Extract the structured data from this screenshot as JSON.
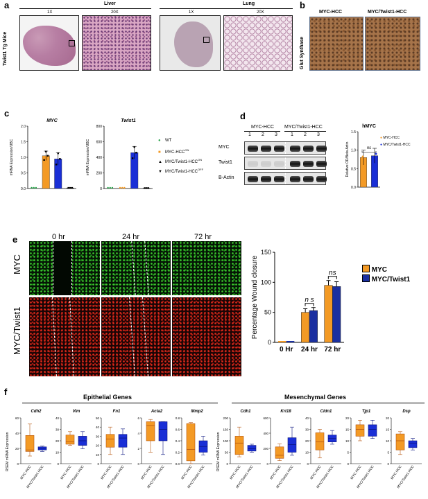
{
  "panel_a": {
    "label": "a",
    "liver_title": "Liver",
    "lung_title": "Lung",
    "mag_1x": "1X",
    "mag_20x": "20X",
    "side_label": "Twist1 Tg Mice"
  },
  "panel_b": {
    "label": "b",
    "col1": "MYC-HCC",
    "col2": "MYC/Twist1-HCC",
    "side_label": "Glut Synthase"
  },
  "panel_c": {
    "label": "c",
    "ylabel": "mRNA Expression/UBC",
    "legend": [
      {
        "name": "WT",
        "color": "#2aa44b",
        "marker": "●"
      },
      {
        "name": "MYC-HCC",
        "sup": "ON",
        "color": "#f39a25",
        "marker": "■"
      },
      {
        "name": "MYC/Twist1-HCC",
        "sup": "ON",
        "color": "#000000",
        "marker": "▲"
      },
      {
        "name": "MYC/Twist1-HCC",
        "sup": "OFF",
        "color": "#000000",
        "marker": "▼"
      }
    ]
  },
  "panel_d": {
    "label": "d",
    "group1": "MYC-HCC",
    "group2": "MYC/Twist1-HCC",
    "lanes": [
      "1",
      "2",
      "3",
      "1",
      "2",
      "3"
    ],
    "rows": [
      "MYC",
      "Twist1",
      "B-Actin"
    ],
    "legend": [
      {
        "name": "MYC-HCC",
        "color": "#f39a25"
      },
      {
        "name": "MYC/Twist1-HCC",
        "color": "#1a2fd6"
      }
    ]
  },
  "panel_e": {
    "label": "e",
    "times": [
      "0 hr",
      "24 hr",
      "72 hr"
    ],
    "row_labels": [
      "MYC",
      "MYC/Twist1"
    ],
    "legend": [
      {
        "name": "MYC",
        "color": "#f39a25"
      },
      {
        "name": "MYC/Twist1",
        "color": "#1a2fa0"
      }
    ]
  },
  "panel_f": {
    "label": "f",
    "epithelial_title": "Epithelial Genes",
    "mesenchymal_title": "Mesenchymal Genes",
    "ylabel": "RSEM mRNA Expression",
    "xcat": [
      "MYC HCC",
      "MYC/Twist1 HCC"
    ],
    "genes": [
      "Cdh2",
      "Vim",
      "Fn1",
      "Acta2",
      "Mmp2",
      "Cdh1",
      "Krt18",
      "Cldn1",
      "Tjp1",
      "Dsp"
    ]
  },
  "chart_data": [
    {
      "id": "c_myc",
      "type": "bar",
      "title": "MYC",
      "ylabel": "mRNA Expression/UBC",
      "categories": [
        "WT",
        "MYC-HCCON",
        "MYC/Twist1-HCCON",
        "MYC/Twist1-HCCOFF"
      ],
      "values": [
        0,
        1.05,
        0.95,
        0.02
      ],
      "errors": [
        0,
        0.15,
        0.2,
        0
      ],
      "colors": [
        "#2aa44b",
        "#f39a25",
        "#1a2fd6",
        "#000000"
      ],
      "ylim": [
        0,
        2
      ],
      "yticks": [
        "0.0",
        "0.5",
        "1.0",
        "1.5",
        "2.0"
      ]
    },
    {
      "id": "c_twist",
      "type": "bar",
      "title": "Twist1",
      "ylabel": "mRNA Expression/UBC",
      "categories": [
        "WT",
        "MYC-HCCON",
        "MYC/Twist1-HCCON",
        "MYC/Twist1-HCCOFF"
      ],
      "values": [
        0,
        0,
        460,
        5
      ],
      "errors": [
        0,
        0,
        80,
        0
      ],
      "colors": [
        "#2aa44b",
        "#f39a25",
        "#1a2fd6",
        "#000000"
      ],
      "ylim": [
        0,
        800
      ],
      "yticks": [
        "0",
        "200",
        "400",
        "600",
        "800"
      ]
    },
    {
      "id": "d_quant",
      "type": "bar",
      "title": "hMYC",
      "ylabel": "Relative OD/Beta Actin",
      "categories": [
        "MYC-HCC",
        "MYC/Twist1-HCC"
      ],
      "values": [
        0.8,
        0.85
      ],
      "errors": [
        0.2,
        0.2
      ],
      "colors": [
        "#f39a25",
        "#1a2fd6"
      ],
      "ylim": [
        0,
        1.5
      ],
      "yticks": [
        "0.0",
        "0.5",
        "1.0",
        "1.5"
      ],
      "annotation": "ns"
    },
    {
      "id": "e_wound",
      "type": "bar",
      "ylabel": "Percentage Wound closure",
      "categories": [
        "0 Hr",
        "24 hr",
        "72 hr"
      ],
      "series": [
        {
          "name": "MYC",
          "values": [
            0,
            50,
            95
          ],
          "errors": [
            0,
            6,
            8
          ],
          "color": "#f39a25"
        },
        {
          "name": "MYC/Twist1",
          "values": [
            0,
            53,
            93
          ],
          "errors": [
            0,
            5,
            8
          ],
          "color": "#1a2fa0"
        }
      ],
      "ylim": [
        0,
        150
      ],
      "yticks": [
        "0",
        "50",
        "100",
        "150"
      ],
      "annotations": [
        "n s",
        "ns"
      ]
    },
    {
      "id": "f_box",
      "type": "box",
      "ylabel": "RSEM mRNA Expression",
      "genes": [
        {
          "name": "Cdh2",
          "ticks": [
            "0",
            "20",
            "40",
            "60"
          ],
          "ymax": 60,
          "myc": [
            10,
            16,
            18,
            37,
            52
          ],
          "twist": [
            16,
            18,
            20,
            22,
            23
          ]
        },
        {
          "name": "Vim",
          "ticks": [
            "0",
            "10",
            "20",
            "30",
            "40"
          ],
          "ymax": 40,
          "myc": [
            16,
            17,
            19,
            25,
            28
          ],
          "twist": [
            13,
            16,
            20,
            24,
            28
          ]
        },
        {
          "name": "Fn1",
          "ticks": [
            "0",
            "10",
            "20",
            "30",
            "40",
            "50"
          ],
          "ymax": 50,
          "myc": [
            10,
            18,
            27,
            32,
            40
          ],
          "twist": [
            10,
            18,
            28,
            32,
            38
          ]
        },
        {
          "name": "Acta2",
          "ticks": [
            "0",
            "2",
            "4",
            "6"
          ],
          "ymax": 6,
          "myc": [
            1.5,
            3,
            5,
            5.5,
            5.8
          ],
          "twist": [
            1.2,
            3,
            4.5,
            5.5,
            5.5
          ]
        },
        {
          "name": "Mmp2",
          "ticks": [
            "0.0",
            "0.2",
            "0.4",
            "0.6",
            "0.8"
          ],
          "ymax": 0.8,
          "myc": [
            0,
            0.05,
            0.25,
            0.7,
            0.72
          ],
          "twist": [
            0.15,
            0.2,
            0.3,
            0.4,
            0.48
          ]
        },
        {
          "name": "Cdh1",
          "ticks": [
            "0",
            "50",
            "100",
            "150",
            "200"
          ],
          "ymax": 200,
          "myc": [
            30,
            40,
            90,
            120,
            160
          ],
          "twist": [
            50,
            55,
            65,
            80,
            85
          ]
        },
        {
          "name": "Krt18",
          "ticks": [
            "0",
            "200",
            "400",
            "600"
          ],
          "ymax": 600,
          "myc": [
            40,
            70,
            110,
            220,
            260
          ],
          "twist": [
            110,
            150,
            250,
            340,
            480
          ]
        },
        {
          "name": "Cldn1",
          "ticks": [
            "0",
            "10",
            "20",
            "30",
            "40"
          ],
          "ymax": 40,
          "myc": [
            5,
            12,
            19,
            27,
            30
          ],
          "twist": [
            17,
            19,
            22,
            25,
            29
          ]
        },
        {
          "name": "Tjp1",
          "ticks": [
            "0",
            "5",
            "10",
            "15",
            "20"
          ],
          "ymax": 20,
          "myc": [
            10,
            12,
            15,
            17,
            19
          ],
          "twist": [
            11,
            12,
            15,
            17,
            19
          ]
        },
        {
          "name": "Dsp",
          "ticks": [
            "0",
            "5",
            "10",
            "15",
            "20"
          ],
          "ymax": 20,
          "myc": [
            4,
            6,
            10,
            13,
            14
          ],
          "twist": [
            6,
            7,
            9,
            10,
            11
          ]
        }
      ]
    }
  ]
}
